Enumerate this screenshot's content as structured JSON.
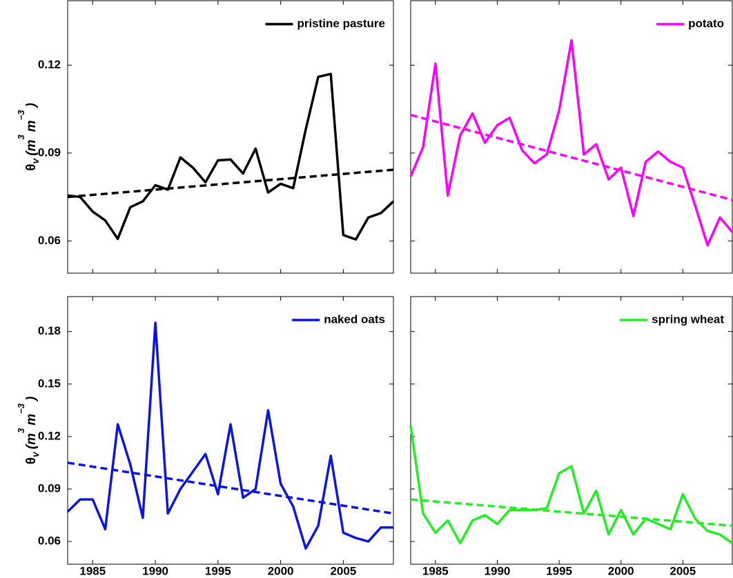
{
  "chart_data": [
    {
      "type": "line",
      "xlim": [
        1983,
        2009
      ],
      "xticks": [
        1985,
        1990,
        1995,
        2000,
        2005
      ],
      "show_xticklabels": false,
      "ylim": [
        0.049,
        0.142
      ],
      "yticks": [
        0.06,
        0.09,
        0.12
      ],
      "show_yticklabels": true,
      "ylabel": [
        {
          "text": "θ"
        },
        {
          "text": "v",
          "shift": "sub"
        },
        {
          "text": "(m",
          "style": "italic"
        },
        {
          "text": "3",
          "shift": "sup"
        },
        {
          "text": "m",
          "style": "italic"
        },
        {
          "text": "−3",
          "shift": "sup"
        },
        {
          "text": ")",
          "style": "italic"
        }
      ],
      "legend": "upper right",
      "x": [
        1983,
        1984,
        1985,
        1986,
        1987,
        1988,
        1989,
        1990,
        1991,
        1992,
        1993,
        1994,
        1995,
        1996,
        1997,
        1998,
        1999,
        2000,
        2001,
        2002,
        2003,
        2004,
        2005,
        2006,
        2007,
        2008,
        2009
      ],
      "series": [
        {
          "name": "pristine pasture",
          "color": "#000000",
          "values": [
            0.0755,
            0.075,
            0.07,
            0.067,
            0.0607,
            0.0715,
            0.0735,
            0.079,
            0.0775,
            0.0885,
            0.085,
            0.08,
            0.0875,
            0.0878,
            0.083,
            0.0915,
            0.0765,
            0.0795,
            0.078,
            0.098,
            0.116,
            0.117,
            0.062,
            0.0605,
            0.068,
            0.0695,
            0.0735
          ],
          "trend": {
            "x": [
              1983,
              2009
            ],
            "values": [
              0.075,
              0.0843
            ]
          }
        }
      ]
    },
    {
      "type": "line",
      "xlim": [
        1983,
        2009
      ],
      "xticks": [
        1985,
        1990,
        1995,
        2000,
        2005
      ],
      "show_xticklabels": false,
      "ylim": [
        0.049,
        0.142
      ],
      "yticks": [
        0.06,
        0.09,
        0.12
      ],
      "show_yticklabels": false,
      "legend": "upper right",
      "x": [
        1983,
        1984,
        1985,
        1986,
        1987,
        1988,
        1989,
        1990,
        1991,
        1992,
        1993,
        1994,
        1995,
        1996,
        1997,
        1998,
        1999,
        2000,
        2001,
        2002,
        2003,
        2004,
        2005,
        2006,
        2007,
        2008,
        2009
      ],
      "series": [
        {
          "name": "potato",
          "color": "#ff00ff",
          "values": [
            0.082,
            0.092,
            0.1205,
            0.0755,
            0.096,
            0.1035,
            0.0935,
            0.0995,
            0.102,
            0.091,
            0.0865,
            0.0895,
            0.1045,
            0.1285,
            0.0895,
            0.093,
            0.081,
            0.085,
            0.0685,
            0.087,
            0.0905,
            0.087,
            0.085,
            0.072,
            0.0585,
            0.068,
            0.063
          ],
          "trend": {
            "x": [
              1983,
              2009
            ],
            "values": [
              0.103,
              0.074
            ]
          }
        }
      ]
    },
    {
      "type": "line",
      "xlim": [
        1983,
        2009
      ],
      "xticks": [
        1985,
        1990,
        1995,
        2000,
        2005
      ],
      "show_xticklabels": true,
      "ylim": [
        0.047,
        0.2
      ],
      "yticks": [
        0.06,
        0.09,
        0.12,
        0.15,
        0.18
      ],
      "show_yticklabels": true,
      "ylabel": [
        {
          "text": "θ"
        },
        {
          "text": "v",
          "shift": "sub"
        },
        {
          "text": "(m",
          "style": "italic"
        },
        {
          "text": "3",
          "shift": "sup"
        },
        {
          "text": "m",
          "style": "italic"
        },
        {
          "text": "−3",
          "shift": "sup"
        },
        {
          "text": ")",
          "style": "italic"
        }
      ],
      "legend": "upper right",
      "x": [
        1983,
        1984,
        1985,
        1986,
        1987,
        1988,
        1989,
        1990,
        1991,
        1992,
        1993,
        1994,
        1995,
        1996,
        1997,
        1998,
        1999,
        2000,
        2001,
        2002,
        2003,
        2004,
        2005,
        2006,
        2007,
        2008,
        2009
      ],
      "series": [
        {
          "name": "naked oats",
          "color": "#0a14e6",
          "values": [
            0.077,
            0.084,
            0.084,
            0.067,
            0.127,
            0.104,
            0.0735,
            0.185,
            0.076,
            0.09,
            0.1,
            0.11,
            0.087,
            0.127,
            0.085,
            0.09,
            0.135,
            0.093,
            0.08,
            0.056,
            0.069,
            0.109,
            0.065,
            0.062,
            0.06,
            0.068,
            0.068
          ],
          "trend": {
            "x": [
              1983,
              2009
            ],
            "values": [
              0.105,
              0.076
            ]
          }
        }
      ]
    },
    {
      "type": "line",
      "xlim": [
        1983,
        2009
      ],
      "xticks": [
        1985,
        1990,
        1995,
        2000,
        2005
      ],
      "show_xticklabels": true,
      "ylim": [
        0.047,
        0.2
      ],
      "yticks": [
        0.06,
        0.09,
        0.12,
        0.15,
        0.18
      ],
      "show_yticklabels": false,
      "legend": "upper right",
      "x": [
        1983,
        1984,
        1985,
        1986,
        1987,
        1988,
        1989,
        1990,
        1991,
        1992,
        1993,
        1994,
        1995,
        1996,
        1997,
        1998,
        1999,
        2000,
        2001,
        2002,
        2003,
        2004,
        2005,
        2006,
        2007,
        2008,
        2009
      ],
      "series": [
        {
          "name": "spring wheat",
          "color": "#22ee22",
          "values": [
            0.126,
            0.076,
            0.065,
            0.072,
            0.059,
            0.072,
            0.075,
            0.07,
            0.078,
            0.078,
            0.078,
            0.079,
            0.099,
            0.103,
            0.076,
            0.089,
            0.064,
            0.078,
            0.064,
            0.073,
            0.07,
            0.067,
            0.087,
            0.073,
            0.066,
            0.064,
            0.059
          ],
          "trend": {
            "x": [
              1983,
              2009
            ],
            "values": [
              0.084,
              0.069
            ]
          }
        }
      ]
    }
  ]
}
